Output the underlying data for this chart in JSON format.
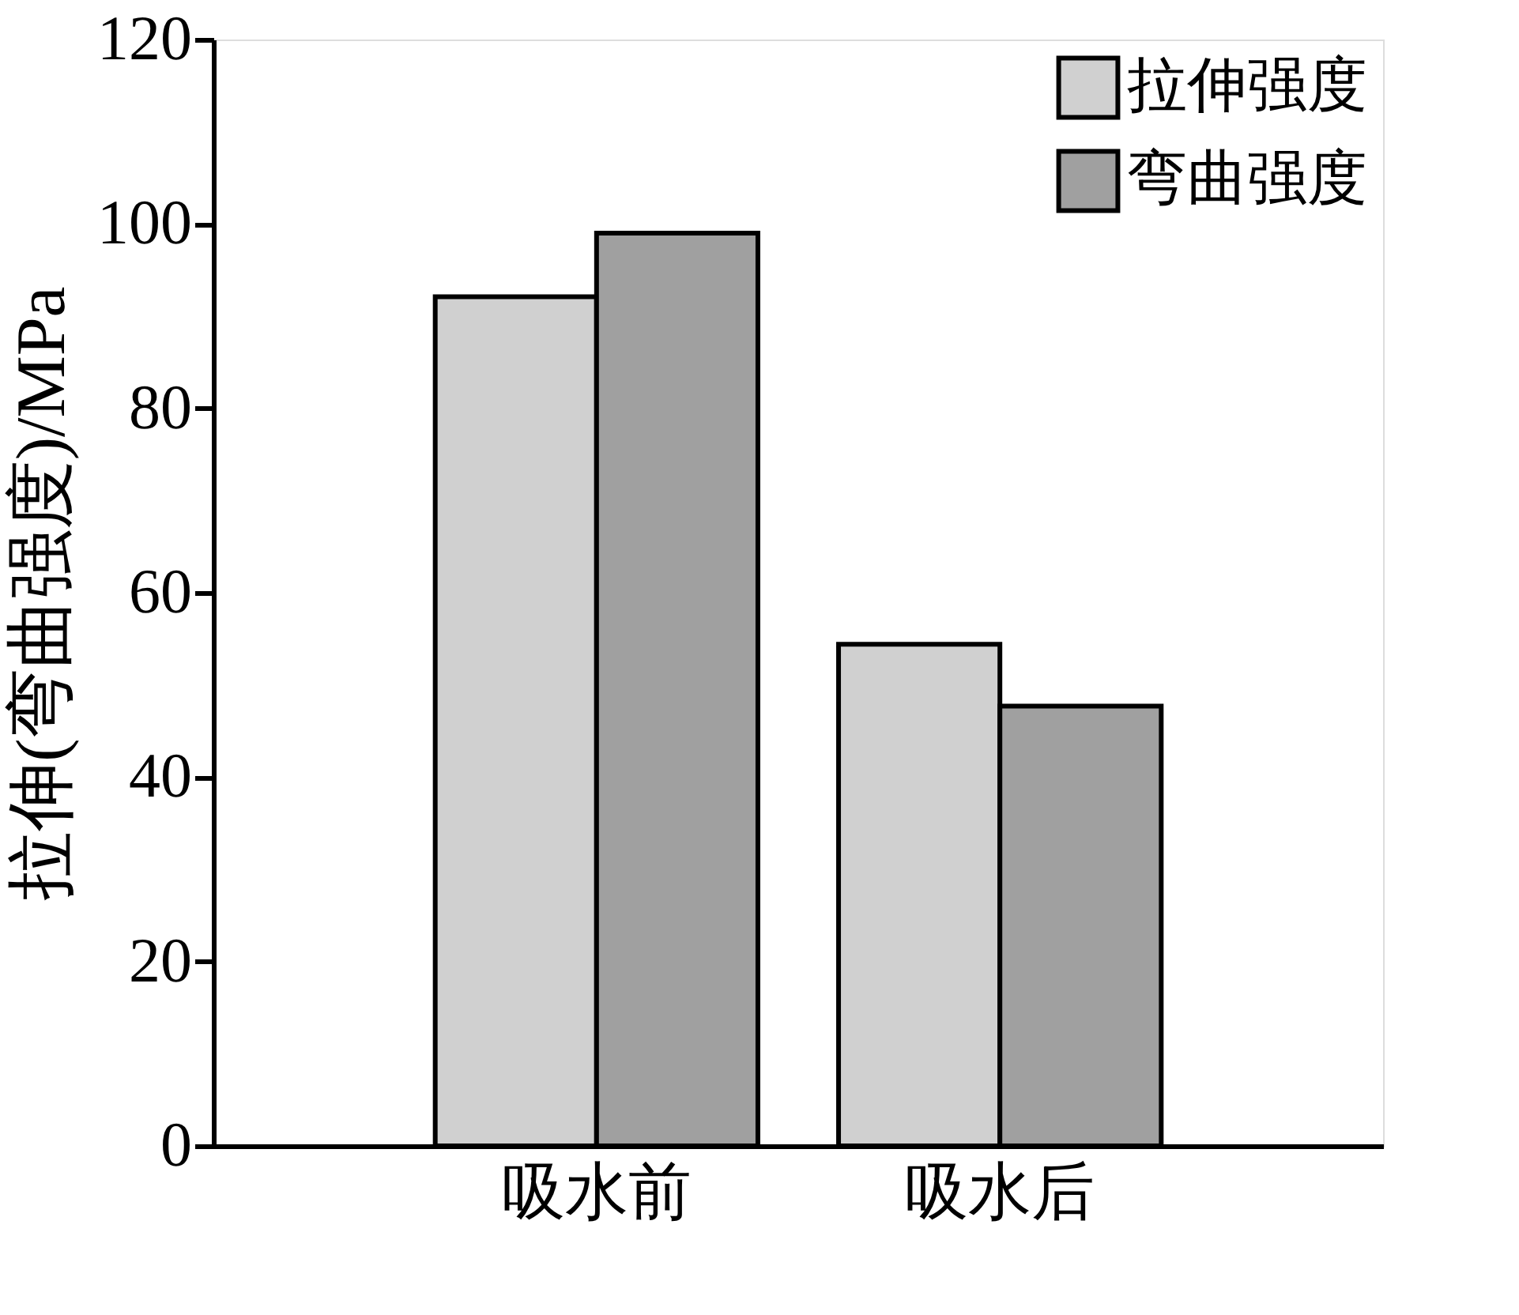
{
  "chart_data": {
    "type": "bar",
    "ylabel": "拉伸(弯曲强度)/MPa",
    "categories": [
      "吸水前",
      "吸水后"
    ],
    "series": [
      {
        "name": "拉伸强度",
        "color": "#d0d0d0",
        "values": [
          92.1,
          54.4
        ]
      },
      {
        "name": "弯曲强度",
        "color": "#a0a0a0",
        "values": [
          99.0,
          47.7
        ]
      }
    ],
    "ylim": [
      0,
      120
    ],
    "yticks": [
      0,
      20,
      40,
      60,
      80,
      100,
      120
    ],
    "grid": false,
    "legend": "top right"
  }
}
